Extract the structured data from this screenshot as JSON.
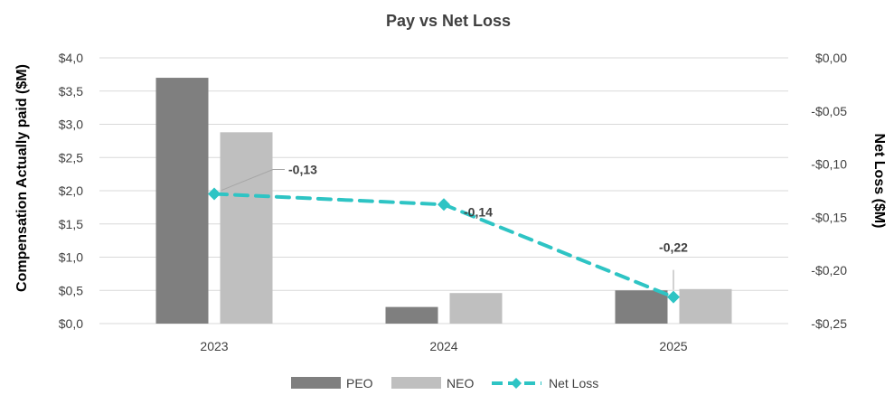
{
  "chart_data": {
    "type": "bar",
    "title": "Pay vs Net Loss",
    "categories": [
      "2023",
      "2024",
      "2025"
    ],
    "ylabel": "Compensation Actually paid ($M)",
    "y2label": "Net Loss ($M)",
    "ylim": [
      0,
      4.0
    ],
    "y2lim": [
      -0.25,
      0.0
    ],
    "yticks": [
      "$0,0",
      "$0,5",
      "$1,0",
      "$1,5",
      "$2,0",
      "$2,5",
      "$3,0",
      "$3,5",
      "$4,0"
    ],
    "y2ticks": [
      "-$0,25",
      "-$0,20",
      "-$0,15",
      "-$0,10",
      "-$0,05",
      "$0,00"
    ],
    "grid": true,
    "legend_position": "bottom",
    "series": [
      {
        "name": "PEO",
        "type": "bar",
        "axis": "left",
        "values": [
          3.7,
          0.25,
          0.5
        ],
        "color": "#7f7f7f"
      },
      {
        "name": "NEO",
        "type": "bar",
        "axis": "left",
        "values": [
          2.88,
          0.46,
          0.52
        ],
        "color": "#bfbfbf"
      },
      {
        "name": "Net Loss",
        "type": "line",
        "axis": "right",
        "values": [
          -0.128,
          -0.138,
          -0.225
        ],
        "labels": [
          "-0,13",
          "-0,14",
          "-0,22"
        ],
        "color": "#2ec4c4"
      }
    ]
  }
}
